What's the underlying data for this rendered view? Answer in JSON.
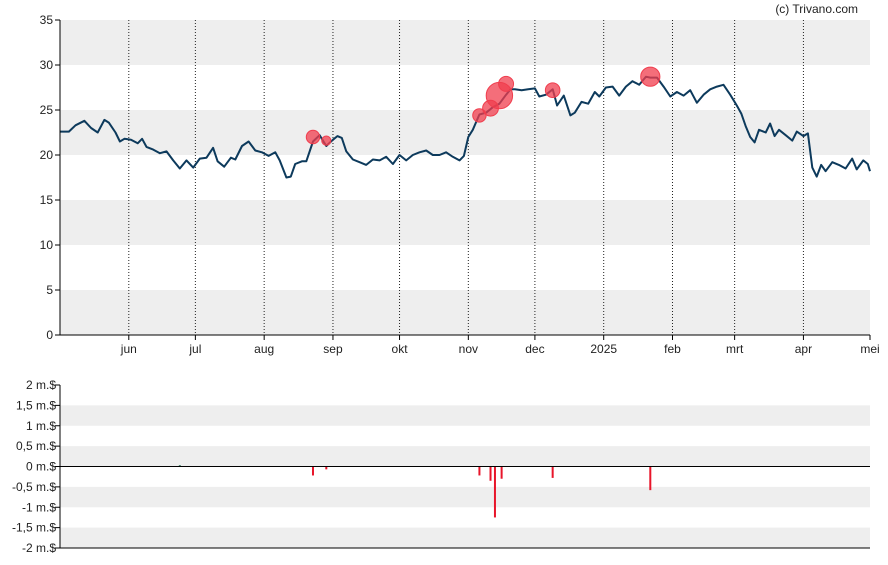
{
  "credit": "(c) Trivano.com",
  "colors": {
    "price_line": "#0d3a5c",
    "trade_marker": "#f03e4e",
    "sell_bar": "#e8152a",
    "buy_bar": "#1a6b4a",
    "band": "#eeeeee",
    "axis": "#000000"
  },
  "chart_data": [
    {
      "type": "line",
      "title": "",
      "xlabel": "",
      "ylabel": "",
      "ylim": [
        0,
        35
      ],
      "yticks": [
        "0",
        "5",
        "10",
        "15",
        "20",
        "25",
        "30",
        "35"
      ],
      "grid": "alternating horizontal bands, dotted vertical lines at month starts",
      "months": [
        {
          "label": "jun",
          "date": "2024-06-01"
        },
        {
          "label": "jul",
          "date": "2024-07-01"
        },
        {
          "label": "aug",
          "date": "2024-08-01"
        },
        {
          "label": "sep",
          "date": "2024-09-01"
        },
        {
          "label": "okt",
          "date": "2024-10-01"
        },
        {
          "label": "nov",
          "date": "2024-11-01"
        },
        {
          "label": "dec",
          "date": "2024-12-01"
        },
        {
          "label": "2025",
          "date": "2025-01-01"
        },
        {
          "label": "feb",
          "date": "2025-02-01"
        },
        {
          "label": "mrt",
          "date": "2025-03-01"
        },
        {
          "label": "apr",
          "date": "2025-04-01"
        },
        {
          "label": "mei",
          "date": "2025-05-01"
        }
      ],
      "x_range": [
        "2024-05-01",
        "2025-05-01"
      ],
      "series": [
        {
          "points": [
            [
              "2024-05-01",
              22.6
            ],
            [
              "2024-05-05",
              22.6
            ],
            [
              "2024-05-08",
              23.3
            ],
            [
              "2024-05-12",
              23.8
            ],
            [
              "2024-05-15",
              23.0
            ],
            [
              "2024-05-18",
              22.5
            ],
            [
              "2024-05-21",
              23.9
            ],
            [
              "2024-05-23",
              23.6
            ],
            [
              "2024-05-26",
              22.5
            ],
            [
              "2024-05-28",
              21.5
            ],
            [
              "2024-05-30",
              21.8
            ],
            [
              "2024-06-02",
              21.7
            ],
            [
              "2024-06-05",
              21.3
            ],
            [
              "2024-06-07",
              21.8
            ],
            [
              "2024-06-09",
              20.9
            ],
            [
              "2024-06-12",
              20.6
            ],
            [
              "2024-06-15",
              20.2
            ],
            [
              "2024-06-18",
              20.4
            ],
            [
              "2024-06-21",
              19.4
            ],
            [
              "2024-06-24",
              18.5
            ],
            [
              "2024-06-27",
              19.4
            ],
            [
              "2024-06-30",
              18.6
            ],
            [
              "2024-07-03",
              19.6
            ],
            [
              "2024-07-06",
              19.7
            ],
            [
              "2024-07-09",
              20.8
            ],
            [
              "2024-07-11",
              19.3
            ],
            [
              "2024-07-14",
              18.7
            ],
            [
              "2024-07-17",
              19.7
            ],
            [
              "2024-07-19",
              19.5
            ],
            [
              "2024-07-22",
              21.0
            ],
            [
              "2024-07-25",
              21.5
            ],
            [
              "2024-07-28",
              20.5
            ],
            [
              "2024-07-31",
              20.3
            ],
            [
              "2024-08-03",
              19.9
            ],
            [
              "2024-08-06",
              20.3
            ],
            [
              "2024-08-08",
              19.4
            ],
            [
              "2024-08-11",
              17.5
            ],
            [
              "2024-08-13",
              17.6
            ],
            [
              "2024-08-15",
              19.0
            ],
            [
              "2024-08-18",
              19.3
            ],
            [
              "2024-08-20",
              19.3
            ],
            [
              "2024-08-23",
              21.5
            ],
            [
              "2024-08-26",
              22.2
            ],
            [
              "2024-08-29",
              21.0
            ],
            [
              "2024-09-01",
              21.7
            ],
            [
              "2024-09-03",
              22.1
            ],
            [
              "2024-09-05",
              21.9
            ],
            [
              "2024-09-07",
              20.4
            ],
            [
              "2024-09-10",
              19.5
            ],
            [
              "2024-09-13",
              19.2
            ],
            [
              "2024-09-16",
              18.9
            ],
            [
              "2024-09-19",
              19.5
            ],
            [
              "2024-09-22",
              19.4
            ],
            [
              "2024-09-25",
              19.8
            ],
            [
              "2024-09-28",
              19.0
            ],
            [
              "2024-10-01",
              20.0
            ],
            [
              "2024-10-04",
              19.4
            ],
            [
              "2024-10-07",
              20.0
            ],
            [
              "2024-10-10",
              20.3
            ],
            [
              "2024-10-13",
              20.5
            ],
            [
              "2024-10-16",
              20.0
            ],
            [
              "2024-10-19",
              20.0
            ],
            [
              "2024-10-22",
              20.3
            ],
            [
              "2024-10-25",
              19.8
            ],
            [
              "2024-10-28",
              19.4
            ],
            [
              "2024-10-30",
              19.9
            ],
            [
              "2024-11-01",
              22.0
            ],
            [
              "2024-11-03",
              22.8
            ],
            [
              "2024-11-06",
              24.5
            ],
            [
              "2024-11-09",
              24.7
            ],
            [
              "2024-11-12",
              25.3
            ],
            [
              "2024-11-15",
              25.7
            ],
            [
              "2024-11-18",
              26.7
            ],
            [
              "2024-11-20",
              27.3
            ],
            [
              "2024-11-22",
              27.3
            ],
            [
              "2024-11-25",
              27.2
            ],
            [
              "2024-11-28",
              27.3
            ],
            [
              "2024-12-01",
              27.4
            ],
            [
              "2024-12-03",
              26.5
            ],
            [
              "2024-12-06",
              26.7
            ],
            [
              "2024-12-09",
              27.3
            ],
            [
              "2024-12-11",
              25.5
            ],
            [
              "2024-12-14",
              26.6
            ],
            [
              "2024-12-17",
              24.4
            ],
            [
              "2024-12-19",
              24.7
            ],
            [
              "2024-12-22",
              25.9
            ],
            [
              "2024-12-25",
              25.7
            ],
            [
              "2024-12-28",
              27.0
            ],
            [
              "2024-12-30",
              26.5
            ],
            [
              "2025-01-02",
              27.5
            ],
            [
              "2025-01-05",
              27.6
            ],
            [
              "2025-01-08",
              26.6
            ],
            [
              "2025-01-11",
              27.6
            ],
            [
              "2025-01-14",
              28.2
            ],
            [
              "2025-01-17",
              27.8
            ],
            [
              "2025-01-20",
              28.7
            ],
            [
              "2025-01-22",
              28.6
            ],
            [
              "2025-01-25",
              28.6
            ],
            [
              "2025-01-28",
              27.6
            ],
            [
              "2025-01-31",
              26.5
            ],
            [
              "2025-02-03",
              27.0
            ],
            [
              "2025-02-06",
              26.6
            ],
            [
              "2025-02-09",
              27.2
            ],
            [
              "2025-02-12",
              25.8
            ],
            [
              "2025-02-15",
              26.7
            ],
            [
              "2025-02-18",
              27.3
            ],
            [
              "2025-02-21",
              27.6
            ],
            [
              "2025-02-24",
              27.8
            ],
            [
              "2025-02-27",
              26.7
            ],
            [
              "2025-03-02",
              25.5
            ],
            [
              "2025-03-04",
              24.6
            ],
            [
              "2025-03-06",
              23.2
            ],
            [
              "2025-03-08",
              22.0
            ],
            [
              "2025-03-10",
              21.4
            ],
            [
              "2025-03-12",
              22.8
            ],
            [
              "2025-03-15",
              22.5
            ],
            [
              "2025-03-17",
              23.5
            ],
            [
              "2025-03-19",
              22.1
            ],
            [
              "2025-03-21",
              22.8
            ],
            [
              "2025-03-24",
              22.2
            ],
            [
              "2025-03-27",
              21.6
            ],
            [
              "2025-03-29",
              22.6
            ],
            [
              "2025-04-01",
              22.1
            ],
            [
              "2025-04-03",
              22.4
            ],
            [
              "2025-04-05",
              18.6
            ],
            [
              "2025-04-07",
              17.6
            ],
            [
              "2025-04-09",
              18.9
            ],
            [
              "2025-04-11",
              18.2
            ],
            [
              "2025-04-14",
              19.2
            ],
            [
              "2025-04-17",
              18.9
            ],
            [
              "2025-04-20",
              18.5
            ],
            [
              "2025-04-23",
              19.6
            ],
            [
              "2025-04-25",
              18.4
            ],
            [
              "2025-04-28",
              19.4
            ],
            [
              "2025-04-30",
              19.0
            ],
            [
              "2025-05-01",
              18.2
            ]
          ]
        }
      ],
      "trade_markers": [
        {
          "date": "2024-08-23",
          "value": 22.0,
          "magnitude": 0.22
        },
        {
          "date": "2024-08-29",
          "value": 21.6,
          "magnitude": 0.07
        },
        {
          "date": "2024-11-06",
          "value": 24.4,
          "magnitude": 0.22
        },
        {
          "date": "2024-11-11",
          "value": 25.2,
          "magnitude": 0.35
        },
        {
          "date": "2024-11-15",
          "value": 26.6,
          "magnitude": 1.25
        },
        {
          "date": "2024-11-18",
          "value": 27.9,
          "magnitude": 0.3
        },
        {
          "date": "2024-12-09",
          "value": 27.2,
          "magnitude": 0.28
        },
        {
          "date": "2025-01-22",
          "value": 28.7,
          "magnitude": 0.58
        }
      ]
    },
    {
      "type": "bar",
      "title": "",
      "ylim": [
        -2,
        2
      ],
      "yticks": [
        "2 m.$",
        "1,5 m.$",
        "1 m.$",
        "0,5 m.$",
        "0 m.$",
        "-0,5 m.$",
        "-1 m.$",
        "-1,5 m.$",
        "-2 m.$"
      ],
      "x_range": [
        "2024-05-01",
        "2025-05-01"
      ],
      "bars": [
        {
          "date": "2024-06-24",
          "value": 0.03
        },
        {
          "date": "2024-08-23",
          "value": -0.22
        },
        {
          "date": "2024-08-29",
          "value": -0.07
        },
        {
          "date": "2024-11-06",
          "value": -0.22
        },
        {
          "date": "2024-11-11",
          "value": -0.35
        },
        {
          "date": "2024-11-13",
          "value": -1.25
        },
        {
          "date": "2024-11-16",
          "value": -0.3
        },
        {
          "date": "2024-12-09",
          "value": -0.28
        },
        {
          "date": "2025-01-22",
          "value": -0.58
        }
      ]
    }
  ]
}
